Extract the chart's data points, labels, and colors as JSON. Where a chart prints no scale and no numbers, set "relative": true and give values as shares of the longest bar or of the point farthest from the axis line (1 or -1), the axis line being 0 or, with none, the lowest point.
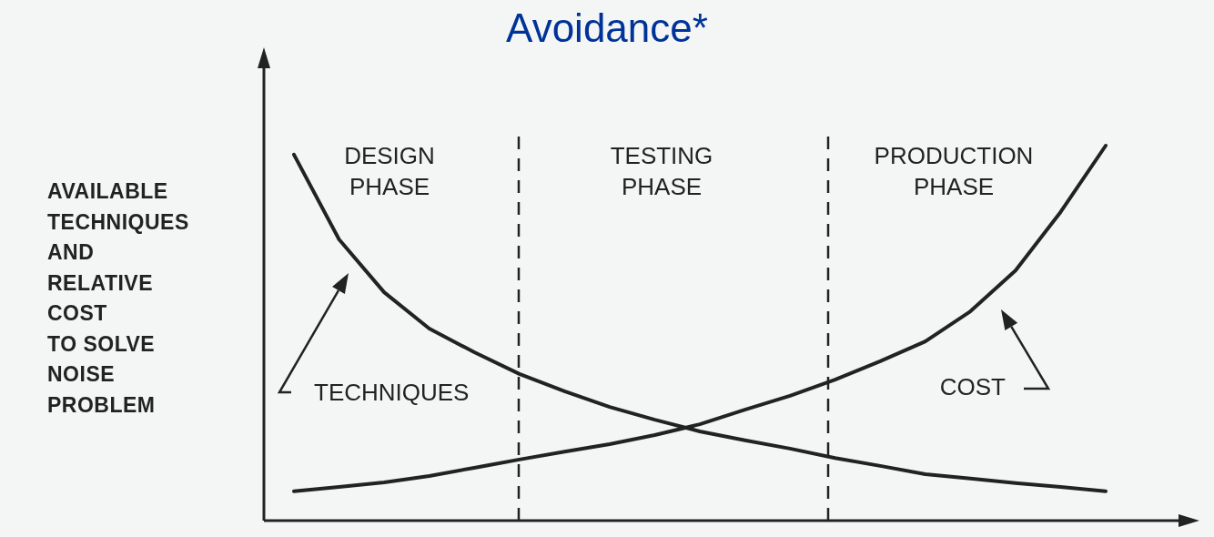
{
  "chart_data": {
    "type": "line",
    "title": "Avoidance*",
    "ylabel": "AVAILABLE\nTECHNIQUES\nAND\nRELATIVE\nCOST\nTO SOLVE\nNOISE\nPROBLEM",
    "relative": true,
    "marker": "none",
    "line_style": "solid",
    "categories": [
      null,
      null,
      null,
      null,
      null,
      null,
      null,
      null,
      null,
      null,
      null,
      null,
      null,
      null,
      null,
      null,
      null,
      null,
      null
    ],
    "series": [
      {
        "name": "TECHNIQUES",
        "color": "#222222",
        "values": [
          0.976,
          0.75,
          0.609,
          0.512,
          0.449,
          0.391,
          0.345,
          0.303,
          0.269,
          0.238,
          0.214,
          0.192,
          0.167,
          0.146,
          0.124,
          0.112,
          0.1,
          0.09,
          0.078
        ]
      },
      {
        "name": "COST",
        "color": "#222222",
        "values": [
          0.078,
          0.09,
          0.102,
          0.119,
          0.141,
          0.163,
          0.184,
          0.204,
          0.228,
          0.257,
          0.296,
          0.333,
          0.376,
          0.425,
          0.478,
          0.558,
          0.667,
          0.823,
          1
        ]
      }
    ],
    "annotations": [
      "DESIGN\nPHASE",
      "TESTING\nPHASE",
      "PRODUCTION\nPHASE"
    ]
  }
}
